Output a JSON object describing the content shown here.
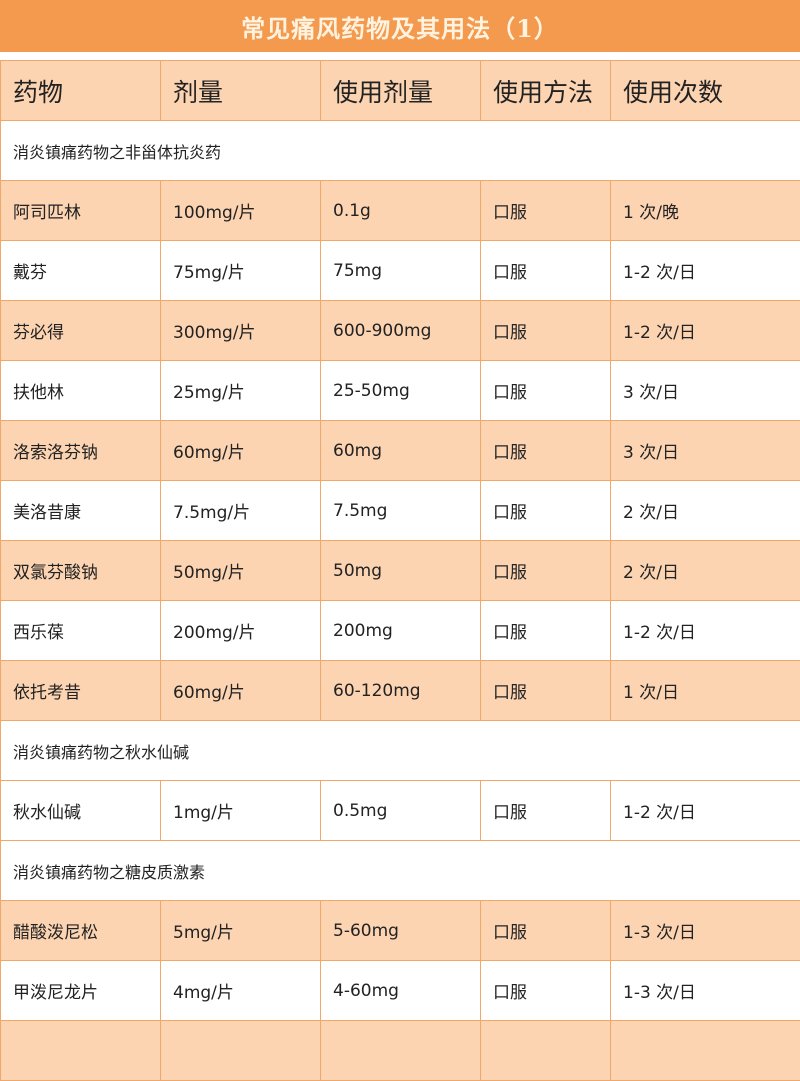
{
  "title": "常见痛风药物及其用法（1）",
  "headers": [
    "药物",
    "剂量",
    "使用剂量",
    "使用方法",
    "使用次数"
  ],
  "rows": [
    {
      "category": "消炎镇痛药物之非甾体抗炎药"
    },
    {
      "cells": [
        "阿司匹林",
        "100mg/片",
        "0.1g",
        "口服",
        "1 次/晚"
      ]
    },
    {
      "cells": [
        "戴芬",
        "75mg/片",
        "75mg",
        "口服",
        "1-2 次/日"
      ]
    },
    {
      "cells": [
        "芬必得",
        "300mg/片",
        "600-900mg",
        "口服",
        "1-2 次/日"
      ]
    },
    {
      "cells": [
        "扶他林",
        "25mg/片",
        "25-50mg",
        "口服",
        "3 次/日"
      ]
    },
    {
      "cells": [
        "洛索洛芬钠",
        "60mg/片",
        "60mg",
        "口服",
        "3 次/日"
      ]
    },
    {
      "cells": [
        "美洛昔康",
        "7.5mg/片",
        "7.5mg",
        "口服",
        "2 次/日"
      ]
    },
    {
      "cells": [
        "双氯芬酸钠",
        "50mg/片",
        "50mg",
        "口服",
        "2 次/日"
      ]
    },
    {
      "cells": [
        "西乐葆",
        "200mg/片",
        "200mg",
        "口服",
        "1-2 次/日"
      ]
    },
    {
      "cells": [
        "依托考昔",
        "60mg/片",
        "60-120mg",
        "口服",
        "1 次/日"
      ]
    },
    {
      "category": "消炎镇痛药物之秋水仙碱"
    },
    {
      "cells": [
        "秋水仙碱",
        "1mg/片",
        "0.5mg",
        "口服",
        "1-2 次/日"
      ]
    },
    {
      "category": "消炎镇痛药物之糖皮质激素"
    },
    {
      "cells": [
        "醋酸泼尼松",
        "5mg/片",
        "5-60mg",
        "口服",
        "1-3 次/日"
      ]
    },
    {
      "cells": [
        "甲泼尼龙片",
        "4mg/片",
        "4-60mg",
        "口服",
        "1-3 次/日"
      ]
    },
    {
      "cells": [
        "",
        "",
        "",
        "",
        ""
      ]
    }
  ]
}
